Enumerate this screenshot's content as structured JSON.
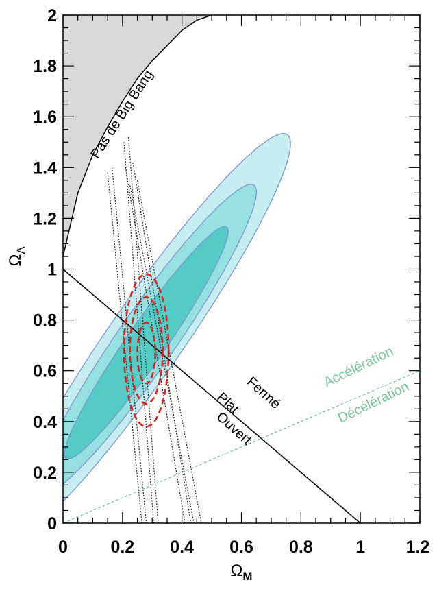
{
  "chart_data": {
    "type": "contour",
    "xlabel": "Ω",
    "xlabel_sub": "M",
    "ylabel": "Ω",
    "ylabel_sub": "Λ",
    "xlim": [
      0,
      1.2
    ],
    "ylim": [
      0,
      2
    ],
    "x_ticks": [
      "0",
      "0.2",
      "0.4",
      "0.6",
      "0.8",
      "1",
      "1.2"
    ],
    "y_ticks": [
      "0",
      "0.2",
      "0.4",
      "0.6",
      "0.8",
      "1",
      "1.2",
      "1.4",
      "1.6",
      "1.8",
      "2"
    ],
    "colors": {
      "no_big_bang_fill": "#d9d9d9",
      "sn_outer": "#c6eef0",
      "sn_middle": "#95e0e0",
      "sn_inner": "#55cbc6",
      "sn_edge": "#7b93d4",
      "cmb_cluster": "#e02020",
      "acceleration": "#77c49a"
    },
    "regions": {
      "no_big_bang": {
        "label": "Pas de Big Bang",
        "boundary": [
          [
            0,
            1.05
          ],
          [
            0.05,
            1.3
          ],
          [
            0.1,
            1.45
          ],
          [
            0.15,
            1.56
          ],
          [
            0.2,
            1.66
          ],
          [
            0.25,
            1.75
          ],
          [
            0.3,
            1.82
          ],
          [
            0.35,
            1.88
          ],
          [
            0.4,
            1.94
          ],
          [
            0.45,
            1.98
          ],
          [
            0.5,
            2.0
          ]
        ]
      }
    },
    "confidence_contours": [
      {
        "level": 3,
        "center": [
          0.28,
          0.73
        ],
        "semi_major": 0.93,
        "semi_minor": 0.13,
        "angle_deg": 59.5
      },
      {
        "level": 2,
        "center": [
          0.28,
          0.72
        ],
        "semi_major": 0.71,
        "semi_minor": 0.1,
        "angle_deg": 59.5
      },
      {
        "level": 1,
        "center": [
          0.28,
          0.71
        ],
        "semi_major": 0.53,
        "semi_minor": 0.068,
        "angle_deg": 59.5
      }
    ],
    "red_contours": [
      {
        "level": 3,
        "center": [
          0.28,
          0.68
        ],
        "rx": 0.075,
        "ry": 0.3
      },
      {
        "level": 2,
        "center": [
          0.28,
          0.68
        ],
        "rx": 0.055,
        "ry": 0.21
      },
      {
        "level": 1,
        "center": [
          0.28,
          0.67
        ],
        "rx": 0.03,
        "ry": 0.12
      }
    ],
    "cluster_bands": [
      {
        "x_top": 0.15,
        "y_top": 1.38,
        "x_bottom": 0.265,
        "y_bottom": 0
      },
      {
        "x_top": 0.165,
        "y_top": 1.4,
        "x_bottom": 0.28,
        "y_bottom": 0
      },
      {
        "x_top": 0.205,
        "y_top": 1.5,
        "x_bottom": 0.305,
        "y_bottom": 0
      },
      {
        "x_top": 0.22,
        "y_top": 1.52,
        "x_bottom": 0.32,
        "y_bottom": 0
      },
      {
        "x_top": 0.21,
        "y_top": 1.4,
        "x_bottom": 0.41,
        "y_bottom": 0
      },
      {
        "x_top": 0.235,
        "y_top": 1.42,
        "x_bottom": 0.43,
        "y_bottom": 0
      },
      {
        "x_top": 0.225,
        "y_top": 1.33,
        "x_bottom": 0.44,
        "y_bottom": 0
      },
      {
        "x_top": 0.25,
        "y_top": 1.35,
        "x_bottom": 0.465,
        "y_bottom": 0
      }
    ],
    "flat_line": {
      "points": [
        [
          0,
          1
        ],
        [
          1,
          0
        ]
      ],
      "labels": [
        "Fermé",
        "Plat",
        "Ouvert"
      ]
    },
    "acceleration_line": {
      "points": [
        [
          0,
          0
        ],
        [
          1.2,
          0.6
        ]
      ],
      "labels": [
        "Accélération",
        "Décélération"
      ]
    },
    "grid": false,
    "legend": "none"
  }
}
